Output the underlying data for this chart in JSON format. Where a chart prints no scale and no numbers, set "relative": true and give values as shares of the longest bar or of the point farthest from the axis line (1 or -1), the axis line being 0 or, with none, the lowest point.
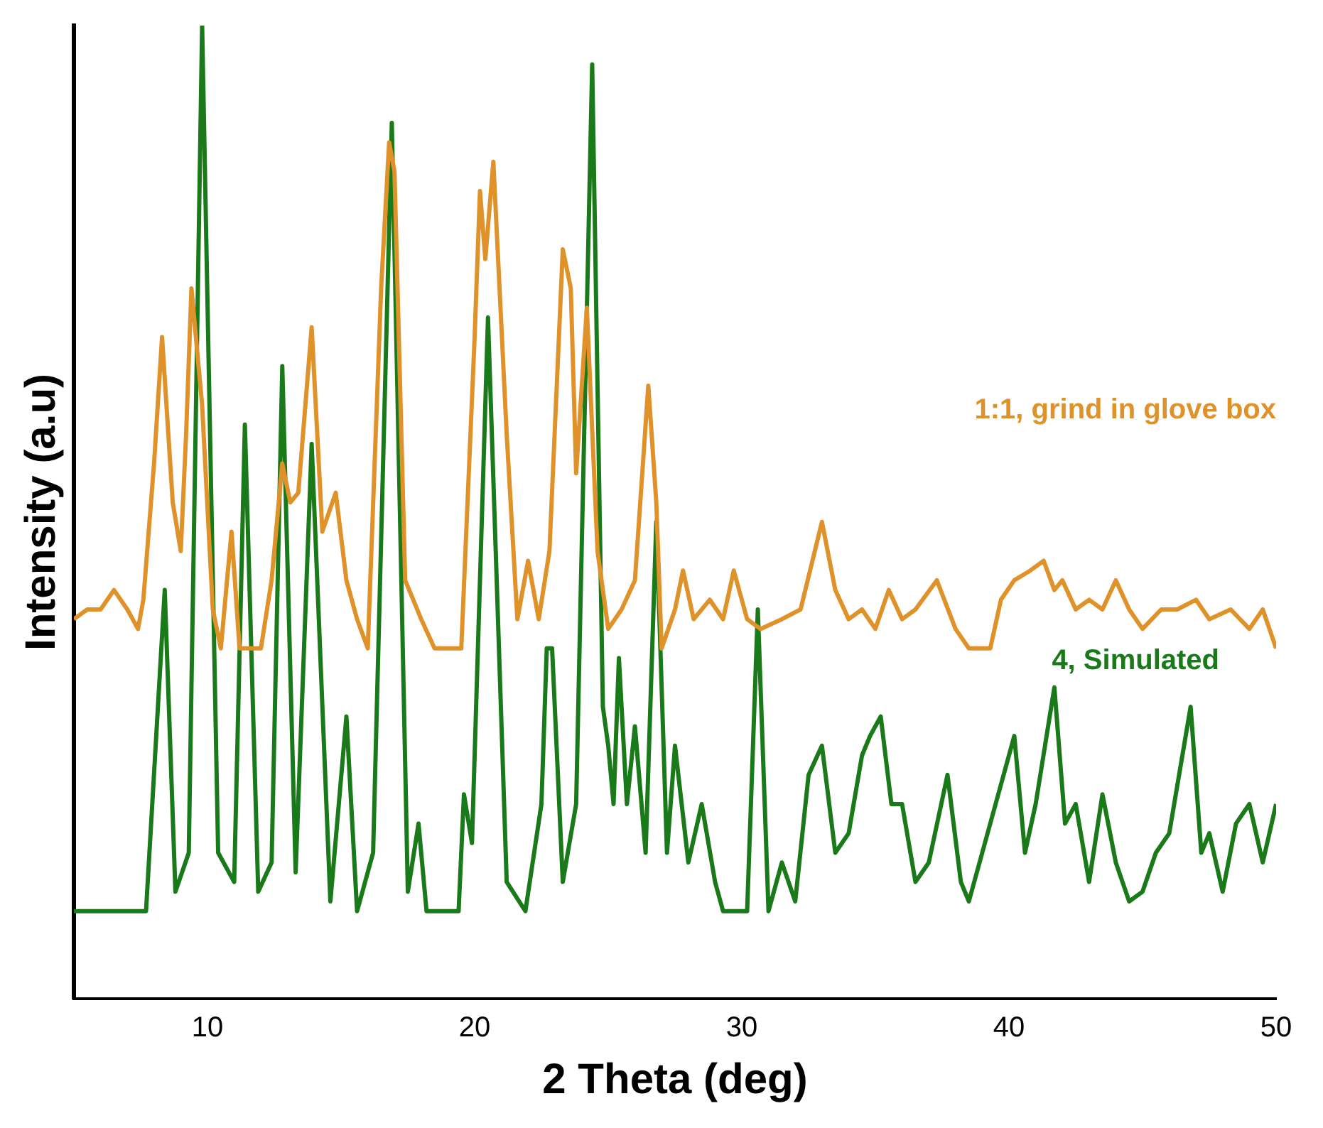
{
  "chart_data": {
    "type": "line",
    "xlabel": "2 Theta (deg)",
    "ylabel": "Intensity (a.u)",
    "relative": true,
    "xlim": [
      5,
      50
    ],
    "xticks": [
      10,
      20,
      30,
      40,
      50
    ],
    "grid": false,
    "legend": false,
    "marker": "none",
    "line_style": "solid",
    "series": [
      {
        "name": "1:1, grind in glove box",
        "color": "#e0922a",
        "x": [
          5,
          5.5,
          6,
          6.5,
          7,
          7.4,
          7.6,
          8.0,
          8.3,
          8.7,
          9.0,
          9.2,
          9.4,
          9.8,
          10.2,
          10.5,
          10.9,
          11.2,
          12.0,
          12.4,
          12.8,
          13.1,
          13.4,
          13.9,
          14.3,
          14.8,
          15.2,
          15.6,
          16.0,
          16.5,
          16.8,
          17.0,
          17.4,
          18,
          18.5,
          19.5,
          20.0,
          20.2,
          20.4,
          20.7,
          21.2,
          21.6,
          22.0,
          22.4,
          22.8,
          23.3,
          23.6,
          23.8,
          24.2,
          24.6,
          25.0,
          25.5,
          26.0,
          26.5,
          26.8,
          27.0,
          27.5,
          27.8,
          28.2,
          28.8,
          29.3,
          29.7,
          30.2,
          30.7,
          31.5,
          32.2,
          33.0,
          33.5,
          34.0,
          34.5,
          35,
          35.5,
          36,
          36.5,
          37.3,
          38,
          38.5,
          39.3,
          39.7,
          40.2,
          40.8,
          41.3,
          41.7,
          42,
          42.5,
          43,
          43.5,
          44,
          44.5,
          45,
          45.7,
          46.3,
          47,
          47.5,
          48.3,
          49,
          49.5,
          50
        ],
        "values": [
          0.39,
          0.4,
          0.4,
          0.42,
          0.4,
          0.38,
          0.41,
          0.55,
          0.68,
          0.51,
          0.46,
          0.58,
          0.73,
          0.61,
          0.4,
          0.36,
          0.48,
          0.36,
          0.36,
          0.43,
          0.55,
          0.51,
          0.52,
          0.69,
          0.48,
          0.52,
          0.43,
          0.39,
          0.36,
          0.73,
          0.88,
          0.85,
          0.43,
          0.39,
          0.36,
          0.36,
          0.68,
          0.83,
          0.76,
          0.86,
          0.58,
          0.39,
          0.45,
          0.39,
          0.46,
          0.77,
          0.73,
          0.54,
          0.71,
          0.46,
          0.38,
          0.4,
          0.43,
          0.63,
          0.51,
          0.36,
          0.4,
          0.44,
          0.39,
          0.41,
          0.39,
          0.44,
          0.39,
          0.38,
          0.39,
          0.4,
          0.49,
          0.42,
          0.39,
          0.4,
          0.38,
          0.42,
          0.39,
          0.4,
          0.43,
          0.38,
          0.36,
          0.36,
          0.41,
          0.43,
          0.44,
          0.45,
          0.42,
          0.43,
          0.4,
          0.41,
          0.4,
          0.43,
          0.4,
          0.38,
          0.4,
          0.4,
          0.41,
          0.39,
          0.4,
          0.38,
          0.4,
          0.36
        ]
      },
      {
        "name": "4, Simulated",
        "color": "#1a7a1a",
        "x": [
          5,
          7.7,
          8.4,
          8.8,
          9.3,
          9.8,
          10.4,
          11.0,
          11.4,
          11.9,
          12.4,
          12.8,
          13.3,
          13.9,
          14.6,
          15.2,
          15.6,
          16.2,
          16.9,
          17.5,
          17.9,
          18.2,
          19.4,
          19.6,
          19.9,
          20.5,
          21.2,
          21.9,
          22.5,
          22.7,
          22.9,
          23.3,
          23.8,
          24.4,
          24.8,
          25.0,
          25.2,
          25.4,
          25.7,
          26.0,
          26.4,
          26.8,
          27.2,
          27.5,
          28.0,
          28.5,
          29.0,
          29.3,
          30.2,
          30.6,
          31.0,
          31.5,
          32.0,
          32.5,
          33.0,
          33.5,
          34.0,
          34.5,
          34.8,
          35.2,
          35.6,
          36.0,
          36.5,
          37.0,
          37.7,
          38.2,
          38.5,
          39.5,
          40.2,
          40.6,
          41.0,
          41.7,
          42.1,
          42.5,
          43.0,
          43.5,
          44.0,
          44.5,
          45.0,
          45.5,
          46.0,
          46.8,
          47.2,
          47.5,
          48.0,
          48.5,
          49.0,
          49.5,
          50
        ],
        "values": [
          0.09,
          0.09,
          0.42,
          0.11,
          0.15,
          1.0,
          0.15,
          0.12,
          0.59,
          0.11,
          0.14,
          0.65,
          0.13,
          0.57,
          0.1,
          0.29,
          0.09,
          0.15,
          0.9,
          0.11,
          0.18,
          0.09,
          0.09,
          0.21,
          0.16,
          0.7,
          0.12,
          0.09,
          0.2,
          0.36,
          0.36,
          0.12,
          0.2,
          0.96,
          0.3,
          0.26,
          0.2,
          0.35,
          0.2,
          0.28,
          0.15,
          0.49,
          0.15,
          0.26,
          0.14,
          0.2,
          0.12,
          0.09,
          0.09,
          0.4,
          0.09,
          0.14,
          0.1,
          0.23,
          0.26,
          0.15,
          0.17,
          0.25,
          0.27,
          0.29,
          0.2,
          0.2,
          0.12,
          0.14,
          0.23,
          0.12,
          0.1,
          0.2,
          0.27,
          0.15,
          0.2,
          0.32,
          0.18,
          0.2,
          0.12,
          0.21,
          0.14,
          0.1,
          0.11,
          0.15,
          0.17,
          0.3,
          0.15,
          0.17,
          0.11,
          0.18,
          0.2,
          0.14,
          0.2
        ]
      }
    ]
  }
}
